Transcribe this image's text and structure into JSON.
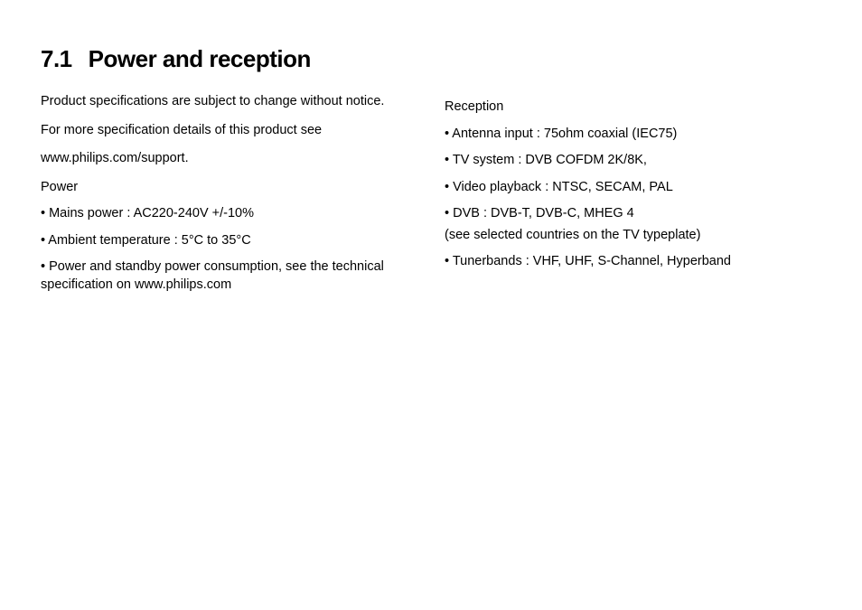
{
  "heading": {
    "number": "7.1",
    "title": "Power and reception"
  },
  "left": {
    "intro1": "Product specifications are subject to change without notice.",
    "intro2": "For more specification details of this product see",
    "intro3": "www.philips.com/support.",
    "subhead": "Power",
    "b1": "• Mains power : AC220-240V +/-10%",
    "b2": "• Ambient temperature : 5°C to 35°C",
    "b3": "• Power and standby power consumption, see the technical specification on www.philips.com"
  },
  "right": {
    "subhead": "Reception",
    "b1": "• Antenna input : 75ohm coaxial (IEC75)",
    "b2": "• TV system : DVB COFDM 2K/8K,",
    "b3": "• Video playback : NTSC, SECAM, PAL",
    "b4": "• DVB : DVB-T, DVB-C, MHEG 4",
    "note": "(see selected countries on the TV typeplate)",
    "b5": "• Tunerbands : VHF, UHF, S-Channel, Hyperband"
  },
  "style": {
    "text_color": "#000000",
    "background": "#ffffff",
    "heading_fontsize": 26,
    "body_fontsize": 14.5
  }
}
